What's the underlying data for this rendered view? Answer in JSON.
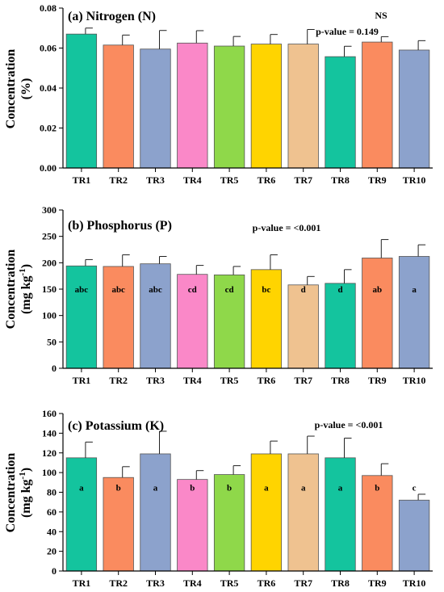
{
  "colors": {
    "TR1": "#14c49e",
    "TR2": "#fa8b5f",
    "TR3": "#8ca2cc",
    "TR4": "#fa88c8",
    "TR5": "#8fd84a",
    "TR6": "#ffd400",
    "TR7": "#efc290",
    "TR8": "#14c49e",
    "TR9": "#fa8b5f",
    "TR10": "#8ca2cc"
  },
  "chart_data": [
    {
      "type": "bar",
      "title": "(a) Nitrogen (N)",
      "annotation": "NS",
      "p_value_text": "p-value = 0.149",
      "ylabel_lines": [
        "Concentration",
        "(%)"
      ],
      "ylim": [
        0,
        0.08
      ],
      "yticks": [
        "0.00",
        "0.02",
        "0.04",
        "0.06",
        "0.08"
      ],
      "categories": [
        "TR1",
        "TR2",
        "TR3",
        "TR4",
        "TR5",
        "TR6",
        "TR7",
        "TR8",
        "TR9",
        "TR10"
      ],
      "values": [
        0.067,
        0.0615,
        0.0595,
        0.0625,
        0.061,
        0.062,
        0.062,
        0.0557,
        0.063,
        0.059
      ],
      "errors": [
        0.003,
        0.005,
        0.0093,
        0.0062,
        0.0048,
        0.0048,
        0.0073,
        0.0052,
        0.0027,
        0.0047
      ],
      "letters": []
    },
    {
      "type": "bar",
      "title": "(b) Phosphorus (P)",
      "p_value_text": "p-value = <0.001",
      "ylabel_lines": [
        "Concentration",
        "(mg kg",
        "-1",
        ")"
      ],
      "ylim": [
        0,
        300
      ],
      "yticks": [
        "0",
        "50",
        "100",
        "150",
        "200",
        "250",
        "300"
      ],
      "categories": [
        "TR1",
        "TR2",
        "TR3",
        "TR4",
        "TR5",
        "TR6",
        "TR7",
        "TR8",
        "TR9",
        "TR10"
      ],
      "values": [
        194,
        193,
        198,
        178,
        177,
        187,
        158,
        161,
        209,
        212
      ],
      "errors": [
        12,
        22,
        14,
        17,
        16,
        28,
        16,
        26,
        35,
        22
      ],
      "letters": [
        "abc",
        "abc",
        "abc",
        "cd",
        "cd",
        "bc",
        "d",
        "d",
        "ab",
        "a"
      ]
    },
    {
      "type": "bar",
      "title": "(c) Potassium (K)",
      "p_value_text": "p-value = <0.001",
      "ylabel_lines": [
        "Concentration",
        "(mg kg",
        "-1",
        ")"
      ],
      "ylim": [
        0,
        160
      ],
      "yticks": [
        "0",
        "20",
        "40",
        "60",
        "80",
        "100",
        "120",
        "140",
        "160"
      ],
      "categories": [
        "TR1",
        "TR2",
        "TR3",
        "TR4",
        "TR5",
        "TR6",
        "TR7",
        "TR8",
        "TR9",
        "TR10"
      ],
      "values": [
        115,
        95,
        119,
        93,
        98,
        119,
        119,
        115,
        97,
        72
      ],
      "errors": [
        16,
        11,
        23,
        9,
        9,
        13,
        18,
        20,
        12,
        6
      ],
      "letters": [
        "a",
        "b",
        "a",
        "b",
        "b",
        "a",
        "a",
        "a",
        "b",
        "c"
      ]
    }
  ]
}
